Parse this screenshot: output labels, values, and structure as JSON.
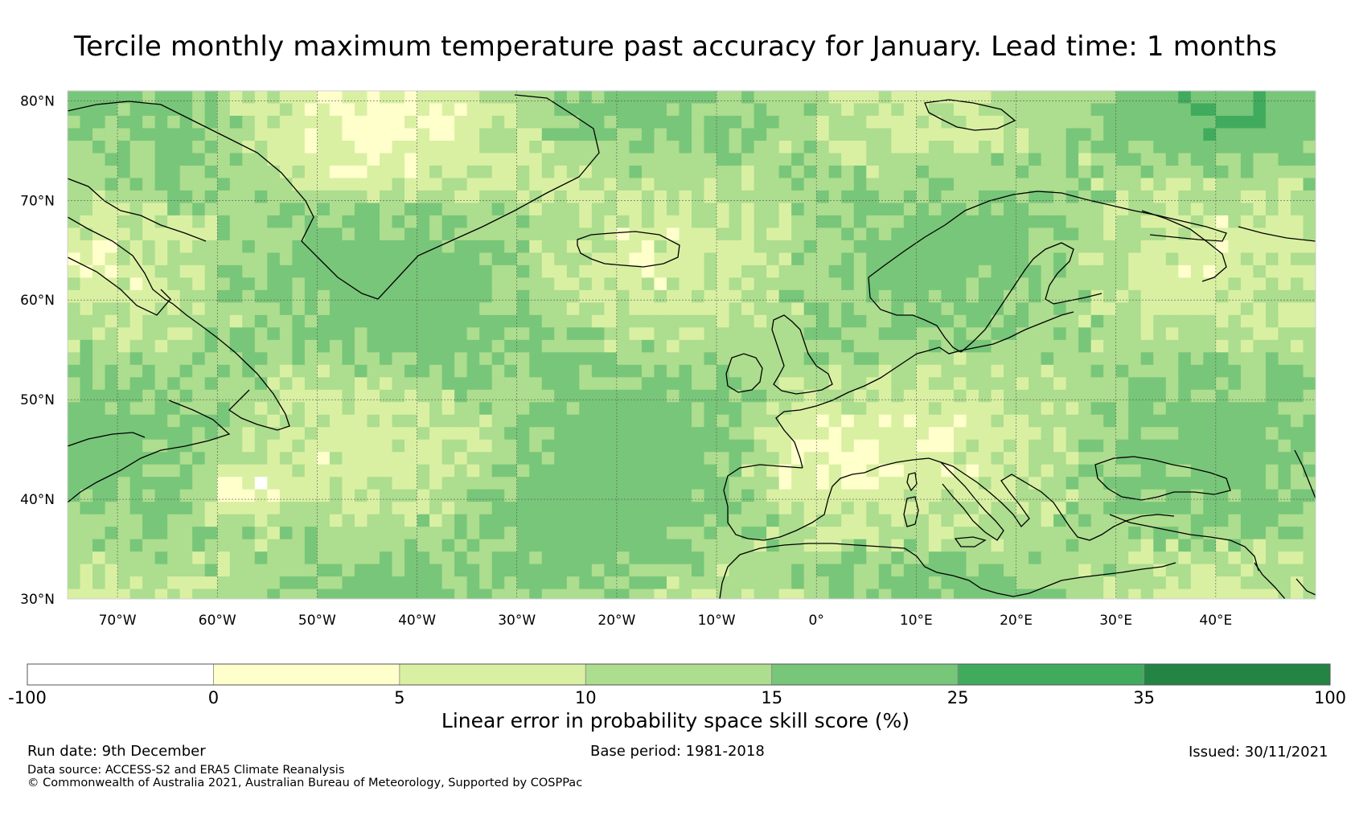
{
  "title": "Tercile monthly maximum temperature past accuracy for January. Lead time: 1 months",
  "map": {
    "lat_labels": [
      "80°N",
      "70°N",
      "60°N",
      "50°N",
      "40°N",
      "30°N"
    ],
    "lat_values": [
      80,
      70,
      60,
      50,
      40,
      30
    ],
    "lon_labels": [
      "70°W",
      "60°W",
      "50°W",
      "40°W",
      "30°W",
      "20°W",
      "10°W",
      "0°",
      "10°E",
      "20°E",
      "30°E",
      "40°E"
    ],
    "lon_values": [
      -70,
      -60,
      -50,
      -40,
      -30,
      -20,
      -10,
      0,
      10,
      20,
      30,
      40
    ],
    "extent": {
      "lon_min": -75,
      "lon_max": 50,
      "lat_min": 30,
      "lat_max": 81
    }
  },
  "colorbar": {
    "bounds": [
      "-100",
      "0",
      "5",
      "10",
      "15",
      "25",
      "35",
      "100"
    ],
    "colors": [
      "#ffffff",
      "#ffffcc",
      "#d9f0a3",
      "#addd8e",
      "#78c679",
      "#41ab5d",
      "#238443"
    ],
    "label": "Linear error in probability space skill score (%)"
  },
  "footer": {
    "run_date": "Run date: 9th December",
    "base_period": "Base period: 1981-2018",
    "issued": "Issued: 30/11/2021",
    "data_source": "Data source: ACCESS-S2 and ERA5 Climate Reanalysis",
    "copyright": "© Commonwealth of Australia 2021, Australian Bureau of Meteorology, Supported by COSPPac"
  },
  "icons": {
    "regions": [
      "greenland",
      "iceland",
      "labrador-coast",
      "scandinavia",
      "british-isles",
      "iberia",
      "italy",
      "black-sea"
    ]
  }
}
